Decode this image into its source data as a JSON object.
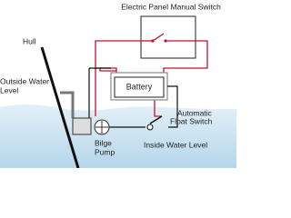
{
  "labels": {
    "panel_switch": "Electric Panel Manual Switch",
    "hull": "Hull",
    "outside_water_level": [
      "Outside Water",
      "Level"
    ],
    "battery": "Battery",
    "float_switch": [
      "Automatic",
      "Float Switch"
    ],
    "bilge_pump": [
      "Bilge",
      "Pump"
    ],
    "inside_water_level": "Inside Water Level"
  }
}
